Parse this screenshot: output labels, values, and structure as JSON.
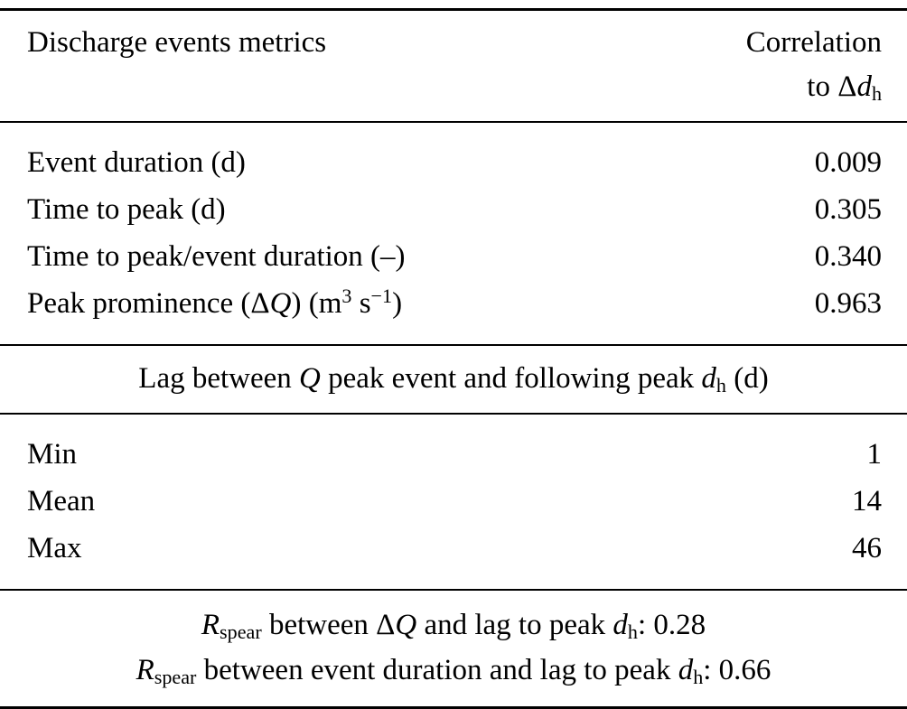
{
  "colors": {
    "background": "#ffffff",
    "text": "#000000",
    "rule": "#000000"
  },
  "table": {
    "header": {
      "left": "Discharge events metrics",
      "right_line1": "Correlation",
      "right_line2": [
        {
          "t": "to Δ"
        },
        {
          "t": "d",
          "s": "i"
        },
        {
          "t": "h",
          "s": "sub"
        }
      ]
    },
    "metrics": [
      {
        "label": [
          {
            "t": "Event duration (d)"
          }
        ],
        "value": "0.009"
      },
      {
        "label": [
          {
            "t": "Time to peak (d)"
          }
        ],
        "value": "0.305"
      },
      {
        "label": [
          {
            "t": "Time to peak/event duration (–)"
          }
        ],
        "value": "0.340"
      },
      {
        "label": [
          {
            "t": "Peak prominence (Δ"
          },
          {
            "t": "Q",
            "s": "i"
          },
          {
            "t": ") (m"
          },
          {
            "t": "3",
            "s": "sup"
          },
          {
            "t": " s"
          },
          {
            "t": "−1",
            "s": "sup"
          },
          {
            "t": ")"
          }
        ],
        "value": "0.963"
      }
    ],
    "section_header": [
      {
        "t": "Lag between "
      },
      {
        "t": "Q",
        "s": "i"
      },
      {
        "t": " peak event and following peak "
      },
      {
        "t": "d",
        "s": "i"
      },
      {
        "t": "h",
        "s": "sub"
      },
      {
        "t": " (d)"
      }
    ],
    "lag_stats": [
      {
        "label": [
          {
            "t": "Min"
          }
        ],
        "value": "1"
      },
      {
        "label": [
          {
            "t": "Mean"
          }
        ],
        "value": "14"
      },
      {
        "label": [
          {
            "t": "Max"
          }
        ],
        "value": "46"
      }
    ],
    "footnotes": [
      [
        {
          "t": "R",
          "s": "i"
        },
        {
          "t": "spear",
          "s": "sub"
        },
        {
          "t": " between Δ"
        },
        {
          "t": "Q",
          "s": "i"
        },
        {
          "t": " and lag to peak "
        },
        {
          "t": "d",
          "s": "i"
        },
        {
          "t": "h",
          "s": "sub"
        },
        {
          "t": ": 0.28"
        }
      ],
      [
        {
          "t": "R",
          "s": "i"
        },
        {
          "t": "spear",
          "s": "sub"
        },
        {
          "t": " between event duration and lag to peak "
        },
        {
          "t": "d",
          "s": "i"
        },
        {
          "t": "h",
          "s": "sub"
        },
        {
          "t": ": 0.66"
        }
      ]
    ]
  }
}
